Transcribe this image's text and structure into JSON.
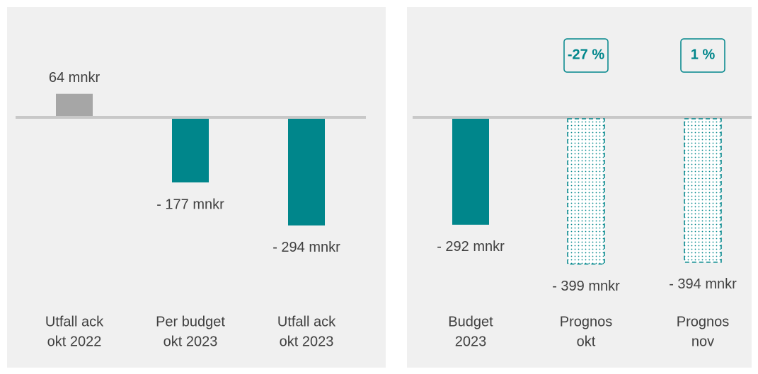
{
  "chart_data": [
    {
      "type": "bar",
      "categories": [
        [
          "Utfall ack",
          "okt 2022"
        ],
        [
          "Per budget",
          "okt 2023"
        ],
        [
          "Utfall ack",
          "okt 2023"
        ]
      ],
      "values": [
        64,
        -177,
        -294
      ],
      "value_labels": [
        "64 mnkr",
        "- 177 mnkr",
        "- 294 mnkr"
      ],
      "colors": [
        "#a6a6a6",
        "#00868b",
        "#00868b"
      ],
      "fills": [
        "solid",
        "solid",
        "solid"
      ]
    },
    {
      "type": "bar",
      "categories": [
        [
          "Budget",
          "2023"
        ],
        [
          "Prognos",
          "okt"
        ],
        [
          "Prognos",
          "nov"
        ]
      ],
      "values": [
        -292,
        -399,
        -394
      ],
      "value_labels": [
        "- 292 mnkr",
        "- 399 mnkr",
        "- 394 mnkr"
      ],
      "colors": [
        "#00868b",
        "#00868b",
        "#00868b"
      ],
      "fills": [
        "solid",
        "dotted",
        "dotted"
      ],
      "annotations": [
        null,
        "-27 %",
        "1 %"
      ]
    }
  ]
}
